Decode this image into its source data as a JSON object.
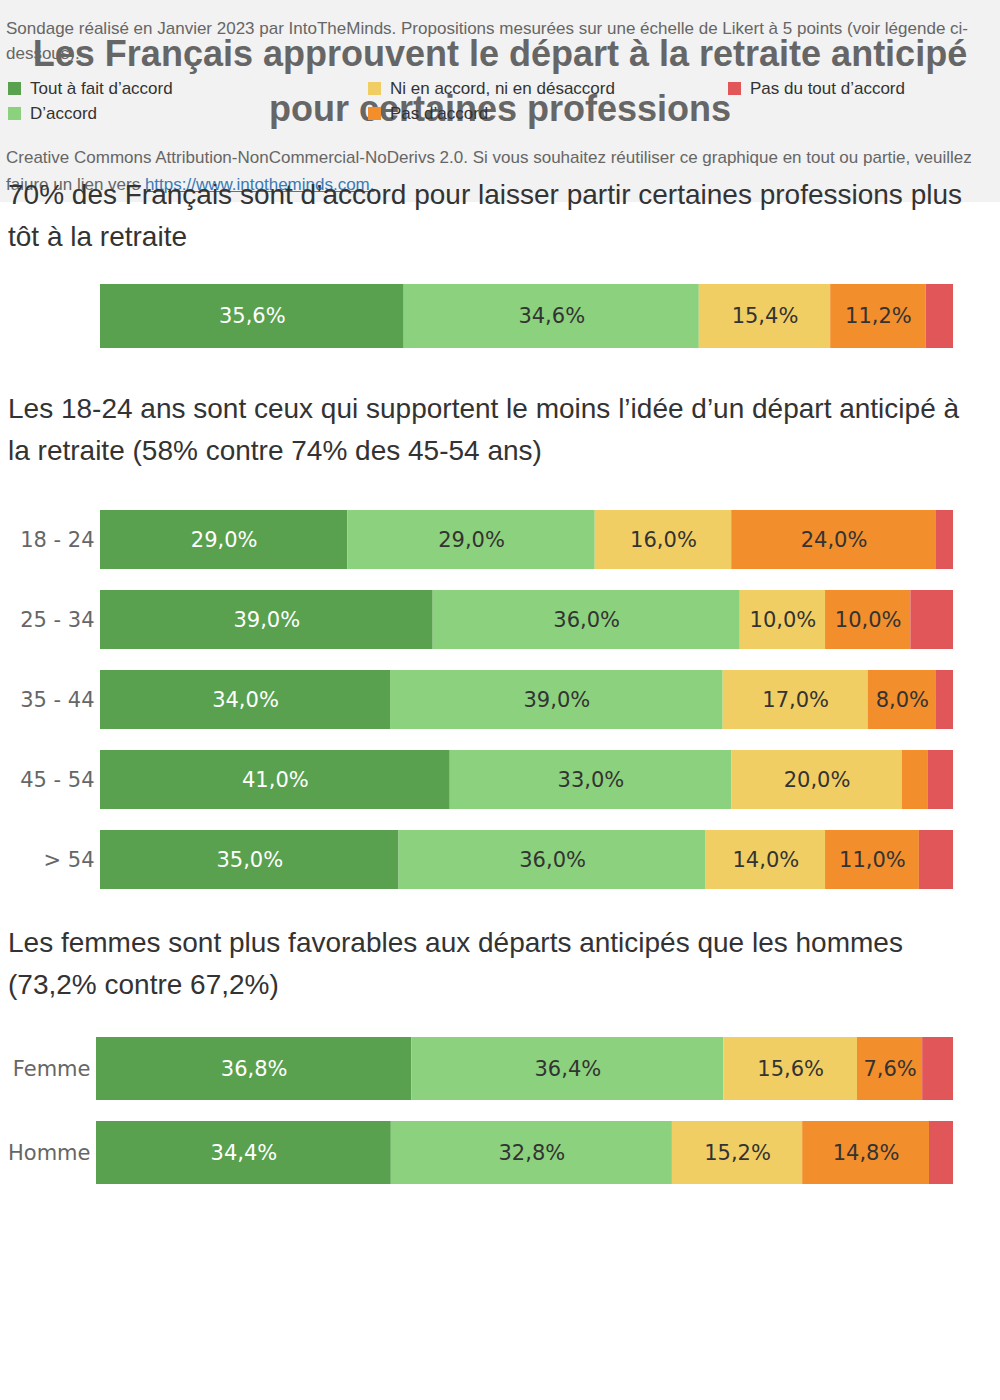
{
  "title": "Les Français approuvent le départ à la retraite anticipé pour certaines professions",
  "note": "Sondage réalisé en Janvier 2023 par IntoTheMinds. Propositions mesurées sur une échelle de Likert à 5 points (voir légende ci-dessous).",
  "license": "Creative Commons Attribution-NonCommercial-NoDerivs 2.0. Si vous souhaitez réutiliser ce graphique en tout ou partie, veuillez faiure un lien vers",
  "link": "https://www.intotheminds.com.",
  "chart_data": [
    {
      "type": "bar",
      "title": "70% des Français sont d’accord pour laisser partir certaines professions plus tôt à la retraite",
      "orientation": "horizontal",
      "stacked": true,
      "data_labels": true,
      "tick_labels": false,
      "legend": "bottom",
      "xlim": [
        0,
        100
      ],
      "xticks": [],
      "categories": [
        null
      ],
      "series": [
        {
          "name": "Tout à fait d’accord",
          "color": "#59a14f",
          "values": [
            35.6
          ],
          "value_labels": [
            "35,6%"
          ]
        },
        {
          "name": "D’accord",
          "color": "#8cd17d",
          "values": [
            34.6
          ],
          "value_labels": [
            "34,6%"
          ]
        },
        {
          "name": "Ni en accord, ni en désaccord",
          "color": "#f1ce63",
          "values": [
            15.4
          ],
          "value_labels": [
            "15,4%"
          ]
        },
        {
          "name": "Pas d’accord",
          "color": "#f28e2b",
          "values": [
            11.2
          ],
          "value_labels": [
            "11,2%"
          ]
        },
        {
          "name": "Pas du tout d’accord",
          "color": "#e15759",
          "values": [
            3.2
          ],
          "value_labels": [
            null
          ]
        }
      ]
    },
    {
      "type": "bar",
      "title": "Les 18-24 ans sont ceux qui supportent le moins l’idée d’un départ anticipé à la retraite (58% contre 74% des 45-54 ans)",
      "orientation": "horizontal",
      "stacked": true,
      "data_labels": true,
      "tick_labels": "y",
      "xlim": [
        0,
        100
      ],
      "xticks": [],
      "categories": [
        "18 - 24",
        "25 - 34",
        "35 - 44",
        "45 - 54",
        "> 54"
      ],
      "series": [
        {
          "name": "Tout à fait d’accord",
          "color": "#59a14f",
          "values": [
            29,
            39,
            34,
            41,
            35
          ],
          "value_labels": [
            "29,0%",
            "39,0%",
            "34,0%",
            "41,0%",
            "35,0%"
          ]
        },
        {
          "name": "D’accord",
          "color": "#8cd17d",
          "values": [
            29,
            36,
            39,
            33,
            36
          ],
          "value_labels": [
            "29,0%",
            "36,0%",
            "39,0%",
            "33,0%",
            "36,0%"
          ]
        },
        {
          "name": "Ni en accord, ni en désaccord",
          "color": "#f1ce63",
          "values": [
            16,
            10,
            17,
            20,
            14
          ],
          "value_labels": [
            "16,0%",
            "10,0%",
            "17,0%",
            "20,0%",
            "14,0%"
          ]
        },
        {
          "name": "Pas d’accord",
          "color": "#f28e2b",
          "values": [
            24,
            10,
            8,
            3,
            11
          ],
          "value_labels": [
            "24,0%",
            "10,0%",
            "8,0%",
            null,
            "11,0%"
          ]
        },
        {
          "name": "Pas du tout d’accord",
          "color": "#e15759",
          "values": [
            2,
            5,
            2,
            3,
            4
          ],
          "value_labels": [
            null,
            null,
            null,
            null,
            null
          ]
        }
      ]
    },
    {
      "type": "bar",
      "title": "Les femmes sont plus favorables aux départs anticipés que les hommes (73,2% contre 67,2%)",
      "orientation": "horizontal",
      "stacked": true,
      "data_labels": true,
      "tick_labels": "y",
      "xlim": [
        0,
        100
      ],
      "xticks": [],
      "categories": [
        "Femme",
        "Homme"
      ],
      "series": [
        {
          "name": "Tout à fait d’accord",
          "color": "#59a14f",
          "values": [
            36.8,
            34.4
          ],
          "value_labels": [
            "36,8%",
            "34,4%"
          ]
        },
        {
          "name": "D’accord",
          "color": "#8cd17d",
          "values": [
            36.4,
            32.8
          ],
          "value_labels": [
            "36,4%",
            "32,8%"
          ]
        },
        {
          "name": "Ni en accord, ni en désaccord",
          "color": "#f1ce63",
          "values": [
            15.6,
            15.2
          ],
          "value_labels": [
            "15,6%",
            "15,2%"
          ]
        },
        {
          "name": "Pas d’accord",
          "color": "#f28e2b",
          "values": [
            7.6,
            14.8
          ],
          "value_labels": [
            "7,6%",
            "14,8%"
          ]
        },
        {
          "name": "Pas du tout d’accord",
          "color": "#e15759",
          "values": [
            3.6,
            2.8
          ],
          "value_labels": [
            null,
            null
          ]
        }
      ]
    }
  ]
}
